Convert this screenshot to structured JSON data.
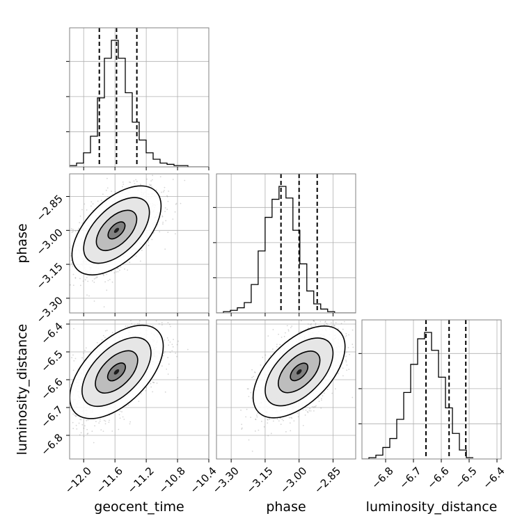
{
  "chart_data": {
    "type": "corner",
    "parameters": [
      "geocent_time",
      "phase",
      "luminosity_distance"
    ],
    "axis_labels": [
      "geocent_time",
      "phase",
      "luminosity_distance"
    ],
    "ranges": {
      "geocent_time": [
        -12.18,
        -10.4
      ],
      "phase": [
        -3.365,
        -2.75
      ],
      "luminosity_distance": [
        -6.885,
        -6.385
      ]
    },
    "ticks": {
      "geocent_time": {
        "values": [
          -12.0,
          -11.6,
          -11.2,
          -10.8,
          -10.4
        ],
        "labels": [
          "−12.0",
          "−11.6",
          "−11.2",
          "−10.8",
          "−10.4"
        ]
      },
      "phase": {
        "values": [
          -3.3,
          -3.15,
          -3.0,
          -2.85
        ],
        "labels": [
          "−3.30",
          "−3.15",
          "−3.00",
          "−2.85"
        ]
      },
      "luminosity_distance": {
        "values": [
          -6.8,
          -6.7,
          -6.6,
          -6.5,
          -6.4
        ],
        "labels": [
          "−6.8",
          "−6.7",
          "−6.6",
          "−6.5",
          "−6.4"
        ]
      }
    },
    "quantiles": {
      "geocent_time": [
        -11.8,
        -11.58,
        -11.32
      ],
      "phase": [
        -3.08,
        -3.0,
        -2.92
      ],
      "luminosity_distance": [
        -6.655,
        -6.572,
        -6.512
      ]
    },
    "histograms": {
      "geocent_time": {
        "start": -12.18,
        "bin_width": 0.089,
        "counts": [
          1,
          3,
          11,
          24,
          54,
          85,
          99,
          85,
          58,
          35,
          21,
          11,
          6,
          3,
          2,
          1,
          1,
          0,
          0,
          0
        ]
      },
      "phase": {
        "start": -3.365,
        "bin_width": 0.0307,
        "counts": [
          0,
          1,
          2,
          4,
          8,
          22,
          48,
          74,
          88,
          98,
          89,
          64,
          38,
          17,
          7,
          3,
          1,
          0,
          0,
          0
        ]
      },
      "luminosity_distance": {
        "start": -6.885,
        "bin_width": 0.025,
        "counts": [
          0,
          1,
          3,
          9,
          16,
          31,
          52,
          74,
          94,
          99,
          85,
          64,
          40,
          20,
          7,
          1
        ]
      }
    },
    "gridlines": true,
    "scatter_color": "#888888",
    "density_color": "#000000"
  }
}
